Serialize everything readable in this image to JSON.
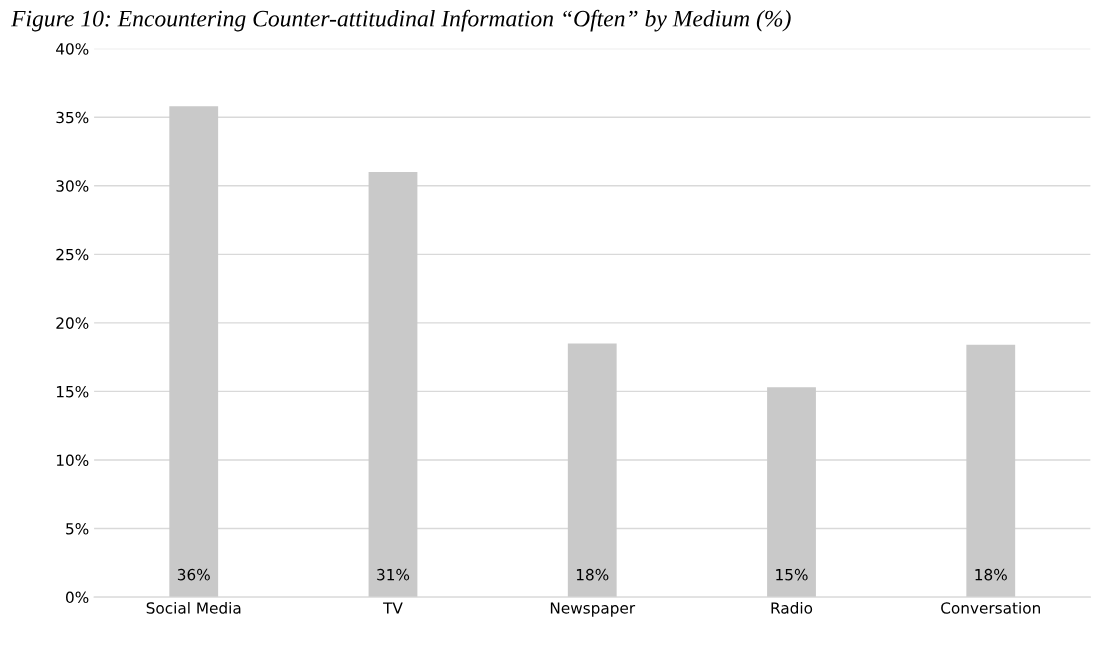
{
  "chart_data": {
    "type": "bar",
    "title": "Figure 10: Encountering Counter-attitudinal Information “Often” by Medium (%)",
    "categories": [
      "Social Media",
      "TV",
      "Newspaper",
      "Radio",
      "Conversation"
    ],
    "values": [
      35.8,
      31.0,
      18.5,
      15.3,
      18.4
    ],
    "value_labels": [
      "36%",
      "31%",
      "18%",
      "15%",
      "18%"
    ],
    "color": "#c9c9c9",
    "ylim": [
      0,
      40
    ],
    "yticks": [
      {
        "value": 0,
        "label": "0%"
      },
      {
        "value": 5,
        "label": "5%"
      },
      {
        "value": 10,
        "label": "10%"
      },
      {
        "value": 15,
        "label": "15%"
      },
      {
        "value": 20,
        "label": "20%"
      },
      {
        "value": 25,
        "label": "25%"
      },
      {
        "value": 30,
        "label": "30%"
      },
      {
        "value": 35,
        "label": "35%"
      },
      {
        "value": 40,
        "label": "40%"
      }
    ],
    "grid": "y",
    "legend": false
  }
}
